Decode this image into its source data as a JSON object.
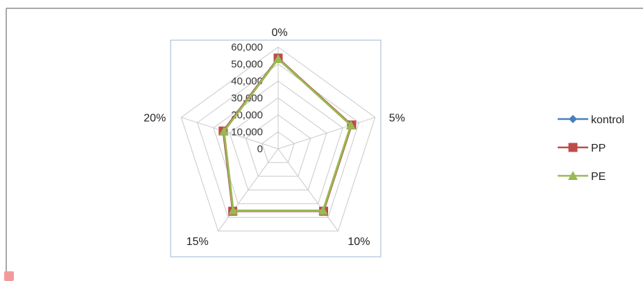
{
  "chart_data": {
    "type": "radar",
    "axes": [
      "0%",
      "5%",
      "10%",
      "15%",
      "20%"
    ],
    "rlim": [
      0,
      60000
    ],
    "ticks": [
      0,
      10000,
      20000,
      30000,
      40000,
      50000,
      60000
    ],
    "tick_labels": [
      "0",
      "10,000",
      "20,000",
      "30,000",
      "40,000",
      "50,000",
      "60,000"
    ],
    "grid": true,
    "legend_position": "right",
    "series": [
      {
        "name": "kontrol",
        "values": [
          53500,
          45000,
          45500,
          45500,
          34000
        ],
        "color": "#4a7ebb",
        "marker": "diamond"
      },
      {
        "name": "PP",
        "values": [
          53500,
          45500,
          45500,
          45500,
          34000
        ],
        "color": "#be4b48",
        "marker": "square"
      },
      {
        "name": "PE",
        "values": [
          53000,
          45000,
          45000,
          45000,
          33500
        ],
        "color": "#98b954",
        "marker": "triangle"
      }
    ]
  }
}
